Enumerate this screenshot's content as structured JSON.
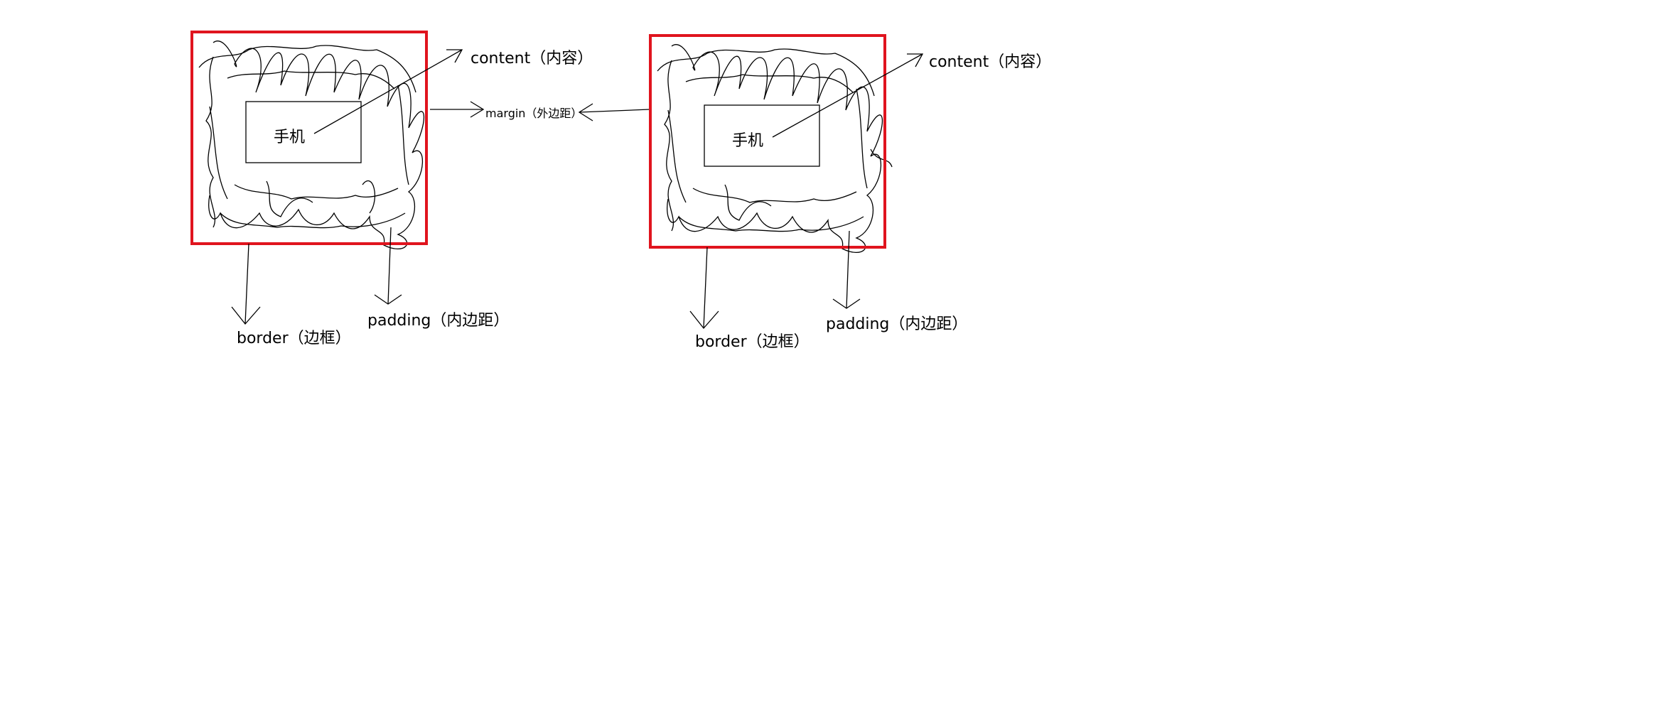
{
  "labels": {
    "content": "content（内容）",
    "padding": "padding（内边距）",
    "border": "border（边框）",
    "margin": "margin（外边距）",
    "inner_text": "手机"
  },
  "colors": {
    "border_box": "#e0141e",
    "ink": "#000000",
    "background": "#ffffff"
  }
}
